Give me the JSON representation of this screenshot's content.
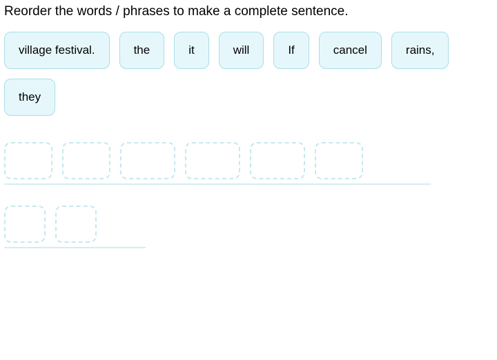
{
  "instruction": "Reorder the words / phrases to make a complete sentence.",
  "colors": {
    "tile_bg": "#e6f7fb",
    "tile_border": "#a8dde8",
    "slot_border": "#c5e8ef",
    "underline": "#d4edf2",
    "text": "#000000",
    "page_bg": "#ffffff"
  },
  "tiles": [
    {
      "label": "village festival."
    },
    {
      "label": "the"
    },
    {
      "label": "it"
    },
    {
      "label": "will"
    },
    {
      "label": "If"
    },
    {
      "label": "cancel"
    },
    {
      "label": "rains,"
    },
    {
      "label": "they"
    }
  ],
  "drop_rows": [
    {
      "slot_widths": [
        70,
        70,
        80,
        80,
        80,
        70
      ],
      "underline_width": 618
    },
    {
      "slot_widths": [
        60,
        60
      ],
      "underline_width": 205
    }
  ]
}
